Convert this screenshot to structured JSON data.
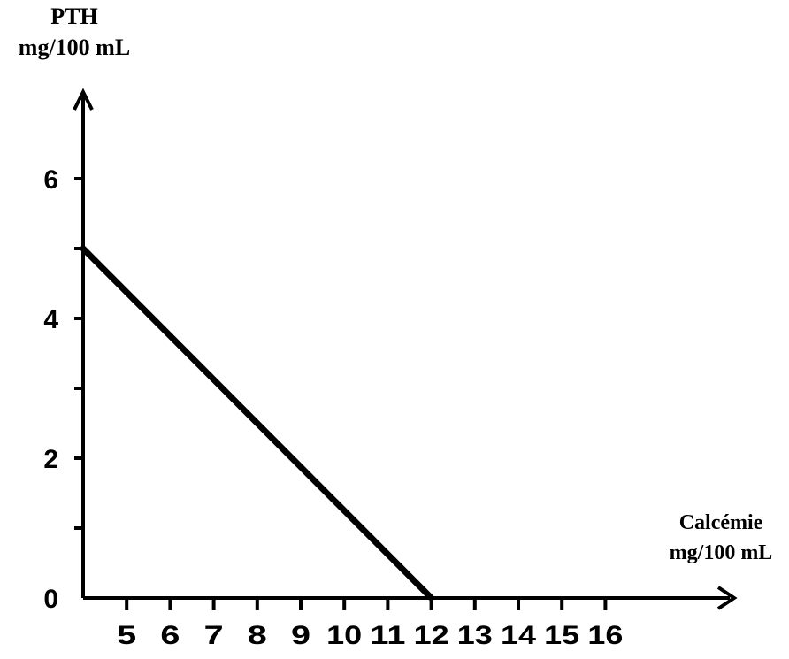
{
  "chart_data": {
    "type": "line",
    "ylabel": [
      "PTH",
      "mg/100 mL"
    ],
    "xlabel": [
      "Calcémie",
      "mg/100 mL"
    ],
    "x_ticks": [
      "5",
      "6",
      "7",
      "8",
      "9",
      "10",
      "11",
      "12",
      "13",
      "14",
      "15",
      "16"
    ],
    "y_ticks": [
      "0",
      "2",
      "4",
      "6"
    ],
    "xlim": [
      4,
      17
    ],
    "ylim": [
      0,
      7
    ],
    "series": [
      {
        "x": [
          4,
          12
        ],
        "y": [
          5,
          0
        ]
      }
    ],
    "grid": false
  }
}
